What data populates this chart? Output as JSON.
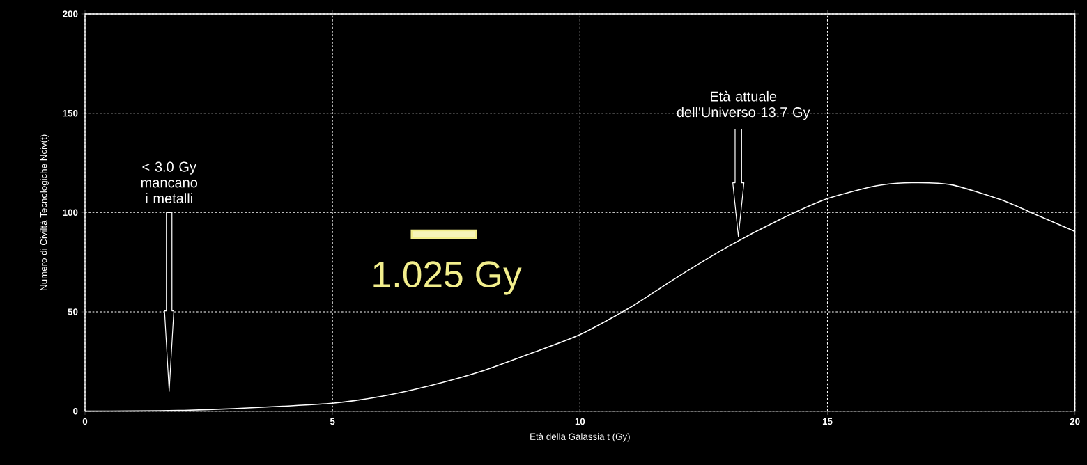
{
  "chart_data": {
    "type": "line",
    "xlabel": "Età della Galassia t (Gy)",
    "ylabel": "Numero di Civiltà Tecnologiche Nciv(t)",
    "x": [
      0,
      1,
      2,
      3,
      4,
      5,
      6,
      7,
      8,
      9,
      10,
      11,
      12,
      13,
      14,
      15,
      16,
      16.7,
      17.5,
      18.5,
      19.3,
      20
    ],
    "values": [
      0,
      0.1,
      0.4,
      1.3,
      2.5,
      4,
      7.5,
      13,
      20,
      29,
      38.5,
      52,
      68,
      83,
      96,
      107,
      113.5,
      115,
      114,
      106.5,
      98,
      90.5
    ],
    "color": "#ffffff",
    "xlim": [
      0,
      20
    ],
    "ylim": [
      0,
      200
    ],
    "xticks": [
      0,
      5,
      10,
      15,
      20
    ],
    "yticks": [
      0,
      50,
      100,
      150,
      200
    ],
    "grid": true,
    "annotations": [
      "< 3.0 Gy mancano i metalli",
      "Età attuale dell'Universo 13.7 Gy",
      "1.025 Gy"
    ]
  }
}
